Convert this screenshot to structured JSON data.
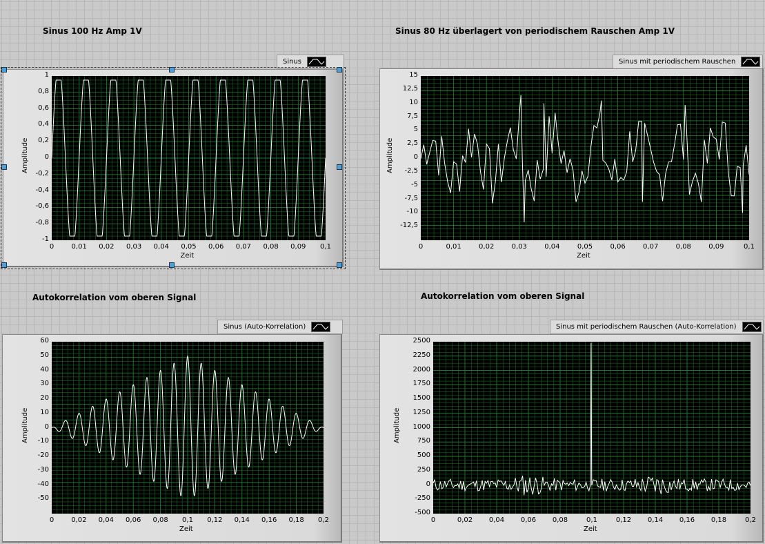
{
  "colors": {
    "plot_bg": "#000000",
    "grid": "#1f7a2e",
    "trace": "#ffffff"
  },
  "charts": [
    {
      "id": "c1",
      "title": "Sinus 100 Hz Amp 1V",
      "legend": "Sinus",
      "selected": true
    },
    {
      "id": "c2",
      "title": "Sinus 80 Hz überlagert von periodischem Rauschen Amp 1V",
      "legend": "Sinus mit periodischem Rauschen",
      "selected": false
    },
    {
      "id": "c3",
      "title": "Autokorrelation vom oberen Signal",
      "legend": "Sinus (Auto-Korrelation)",
      "selected": false
    },
    {
      "id": "c4",
      "title": "Autokorrelation vom oberen Signal",
      "legend": "Sinus mit periodischem Rauschen (Auto-Korrelation)",
      "selected": false
    }
  ],
  "chart_data": [
    {
      "type": "line",
      "title": "Sinus 100 Hz Amp 1V",
      "legend": "Sinus",
      "xlabel": "Zeit",
      "ylabel": "Amplitude",
      "xlim": [
        0,
        0.1
      ],
      "ylim": [
        -1,
        1
      ],
      "grid": true,
      "xticks": [
        "0",
        "0,01",
        "0,02",
        "0,03",
        "0,04",
        "0,05",
        "0,06",
        "0,07",
        "0,08",
        "0,09",
        "0,1"
      ],
      "yticks": [
        "-1",
        "-0,8",
        "-0,6",
        "-0,4",
        "-0,2",
        "0",
        "0,2",
        "0,4",
        "0,6",
        "0,8",
        "1"
      ],
      "signal": {
        "kind": "sine",
        "freq_hz": 100,
        "amp": 0.95,
        "clip": 0.95
      }
    },
    {
      "type": "line",
      "title": "Sinus 80 Hz überlagert von periodischem Rauschen Amp 1V",
      "legend": "Sinus mit periodischem Rauschen",
      "xlabel": "Zeit",
      "ylabel": "Amplitude",
      "xlim": [
        0,
        0.1
      ],
      "ylim": [
        -15,
        15
      ],
      "grid": true,
      "xticks": [
        "0",
        "0,01",
        "0,02",
        "0,03",
        "0,04",
        "0,05",
        "0,06",
        "0,07",
        "0,08",
        "0,09",
        "0,1"
      ],
      "yticks": [
        "-12,5",
        "-10",
        "-7,5",
        "-5",
        "-2,5",
        "0",
        "2,5",
        "5",
        "7,5",
        "10",
        "12,5",
        "15"
      ],
      "signal": {
        "kind": "noise",
        "seed": 7,
        "points": 110,
        "amp": 7,
        "peaks": [
          [
            0.0305,
            11.5
          ],
          [
            0.0315,
            -11.7
          ],
          [
            0.0375,
            10
          ],
          [
            0.055,
            10.5
          ],
          [
            0.0675,
            -8
          ],
          [
            0.0805,
            9.7
          ],
          [
            0.098,
            -10
          ]
        ]
      }
    },
    {
      "type": "line",
      "title": "Autokorrelation vom oberen Signal",
      "legend": "Sinus (Auto-Korrelation)",
      "xlabel": "Zeit",
      "ylabel": "Amplitude",
      "xlim": [
        0,
        0.2
      ],
      "ylim": [
        -60,
        60
      ],
      "grid": true,
      "xticks": [
        "0",
        "0,02",
        "0,04",
        "0,06",
        "0,08",
        "0,1",
        "0,12",
        "0,14",
        "0,16",
        "0,18",
        "0,2"
      ],
      "yticks": [
        "-50",
        "-40",
        "-30",
        "-20",
        "-10",
        "0",
        "10",
        "20",
        "30",
        "40",
        "50",
        "60"
      ],
      "signal": {
        "kind": "autocorr_sine",
        "freq_hz": 100,
        "peak": 50,
        "center": 0.1,
        "width": 0.1
      }
    },
    {
      "type": "line",
      "title": "Autokorrelation vom oberen Signal",
      "legend": "Sinus mit periodischem Rauschen (Auto-Korrelation)",
      "xlabel": "Zeit",
      "ylabel": "Amplitude",
      "xlim": [
        0,
        0.2
      ],
      "ylim": [
        -500,
        2500
      ],
      "grid": true,
      "xticks": [
        "0",
        "0,02",
        "0,04",
        "0,06",
        "0,08",
        "0,1",
        "0,12",
        "0,14",
        "0,16",
        "0,18",
        "0,2"
      ],
      "yticks": [
        "-500",
        "-250",
        "0",
        "250",
        "500",
        "750",
        "1000",
        "1250",
        "1500",
        "1750",
        "2000",
        "2250",
        "2500"
      ],
      "signal": {
        "kind": "autocorr_noise",
        "seed": 11,
        "points": 220,
        "amp": 110,
        "spike_x": 0.0995,
        "spike_y": 2480
      }
    }
  ]
}
